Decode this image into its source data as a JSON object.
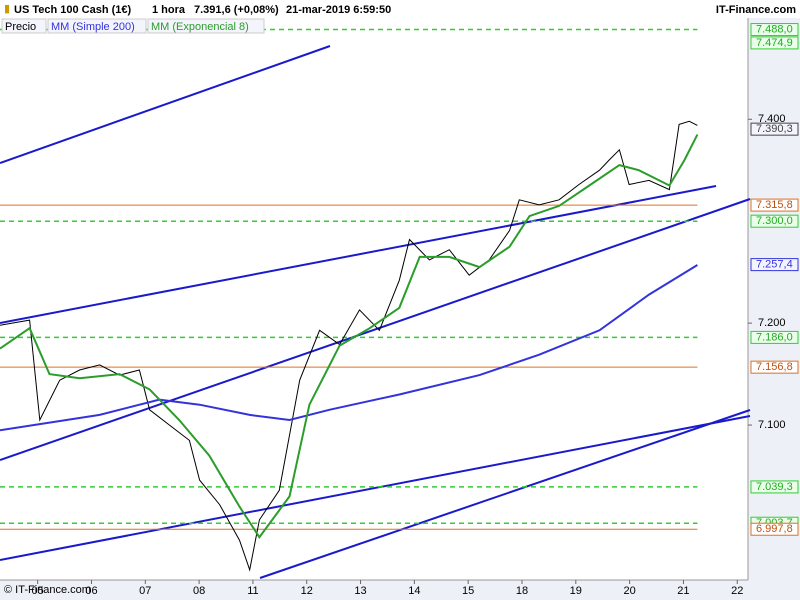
{
  "chart_data": {
    "type": "line",
    "title": "US Tech 100 Cash (1€)",
    "timeframe": "1 hora",
    "last_price": "7.391,6 (+0,08%)",
    "timestamp": "21-mar-2019 6:59:50",
    "brand": "IT-Finance.com",
    "footer": "© IT-Finance.com",
    "xlim": [
      -0.7,
      13.2
    ],
    "xticks": [
      {
        "value": 0,
        "label": "05"
      },
      {
        "value": 1,
        "label": "06"
      },
      {
        "value": 2,
        "label": "07"
      },
      {
        "value": 3,
        "label": "08"
      },
      {
        "value": 4,
        "label": "11"
      },
      {
        "value": 5,
        "label": "12"
      },
      {
        "value": 6,
        "label": "13"
      },
      {
        "value": 7,
        "label": "14"
      },
      {
        "value": 8,
        "label": "15"
      },
      {
        "value": 9,
        "label": "18"
      },
      {
        "value": 10,
        "label": "19"
      },
      {
        "value": 11,
        "label": "20"
      },
      {
        "value": 12,
        "label": "21"
      },
      {
        "value": 13,
        "label": "22"
      }
    ],
    "ylim": [
      6948,
      7517
    ],
    "yticks": [
      {
        "value": 7100,
        "label": "7.100"
      },
      {
        "value": 7200,
        "label": "7.200"
      },
      {
        "value": 7400,
        "label": "7.400"
      }
    ],
    "series": [
      {
        "name": "Precio",
        "color": "#000000",
        "x": [
          -0.7,
          -0.15,
          0.04,
          0.41,
          0.78,
          1.15,
          1.52,
          1.89,
          2.08,
          2.45,
          2.82,
          3.01,
          3.38,
          3.75,
          3.94,
          4.12,
          4.49,
          4.87,
          5.24,
          5.61,
          5.98,
          6.35,
          6.72,
          6.91,
          7.28,
          7.65,
          8.02,
          8.39,
          8.77,
          8.95,
          9.32,
          9.69,
          10.06,
          10.44,
          10.62,
          10.81,
          10.99,
          11.36,
          11.74,
          11.92,
          12.11,
          12.26
        ],
        "values": [
          7198,
          7203,
          7105,
          7144,
          7154,
          7159,
          7149,
          7154,
          7115,
          7100,
          7085,
          7046,
          7022,
          6987,
          6958,
          7007,
          7036,
          7144,
          7193,
          7179,
          7213,
          7193,
          7242,
          7282,
          7262,
          7272,
          7247,
          7262,
          7291,
          7321,
          7316,
          7321,
          7336,
          7350,
          7360,
          7370,
          7336,
          7340,
          7331,
          7395,
          7398,
          7394
        ]
      },
      {
        "name": "MM (Simple 200)",
        "color": "#3333dd",
        "x": [
          -0.7,
          1.15,
          2.26,
          3.01,
          3.94,
          4.68,
          5.42,
          6.72,
          8.21,
          9.32,
          10.44,
          11.36,
          12.26
        ],
        "values": [
          7095,
          7110,
          7125,
          7120,
          7110,
          7105,
          7115,
          7130,
          7149,
          7169,
          7193,
          7228,
          7257
        ]
      },
      {
        "name": "MM (Exponencial 8)",
        "color": "#2a9d2a",
        "x": [
          -0.7,
          -0.15,
          0.22,
          0.78,
          1.52,
          2.08,
          2.63,
          3.19,
          3.75,
          4.12,
          4.68,
          5.05,
          5.61,
          6.17,
          6.72,
          7.1,
          7.65,
          8.21,
          8.77,
          9.14,
          9.69,
          10.25,
          10.81,
          11.17,
          11.74,
          12.02,
          12.26
        ],
        "values": [
          7175,
          7195,
          7150,
          7146,
          7150,
          7135,
          7105,
          7070,
          7020,
          6990,
          7030,
          7120,
          7178,
          7195,
          7215,
          7265,
          7265,
          7255,
          7275,
          7305,
          7315,
          7335,
          7355,
          7350,
          7335,
          7360,
          7385
        ]
      }
    ],
    "levels": [
      {
        "value": 7488.0,
        "label": "7.488,0",
        "color": "#33cc33",
        "style": "dashed"
      },
      {
        "value": 7474.9,
        "label": "7.474,9",
        "color": "#33cc33",
        "style": "none"
      },
      {
        "value": 7315.8,
        "label": "7.315,8",
        "color": "#e07020",
        "style": "solid"
      },
      {
        "value": 7300.0,
        "label": "7.300,0",
        "color": "#33cc33",
        "style": "dashed"
      },
      {
        "value": 7186.0,
        "label": "7.186,0",
        "color": "#33cc33",
        "style": "dashed"
      },
      {
        "value": 7156.8,
        "label": "7.156,8",
        "color": "#e07020",
        "style": "solid"
      },
      {
        "value": 7039.3,
        "label": "7.039,3",
        "color": "#33cc33",
        "style": "dashed"
      },
      {
        "value": 7003.7,
        "label": "7.003,7",
        "color": "#33cc33",
        "style": "dashed"
      },
      {
        "value": 6997.8,
        "label": "6.997,8",
        "color": "#e07020",
        "style": "solid"
      }
    ],
    "price_tags": [
      {
        "value": 7390.3,
        "label": "7.390,3",
        "color": "#444444"
      },
      {
        "value": 7257.4,
        "label": "7.257,4",
        "color": "#3333dd"
      }
    ]
  }
}
